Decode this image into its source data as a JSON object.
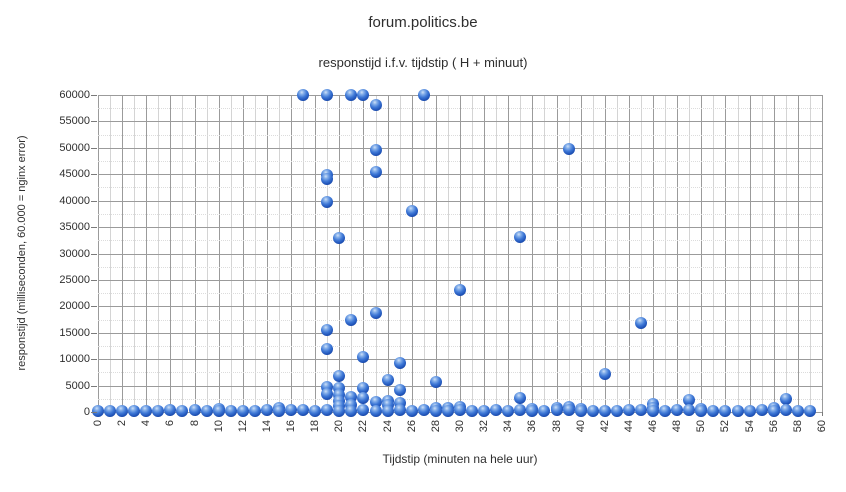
{
  "page": {
    "title": "forum.politics.be",
    "subtitle": "responstijd i.f.v. tijdstip ( H + minuut)"
  },
  "chart_data": {
    "type": "scatter",
    "title": "forum.politics.be",
    "subtitle": "responstijd i.f.v. tijdstip ( H + minuut)",
    "xlabel": "Tijdstip (minuten na hele uur)",
    "ylabel": "responstijd (milliseconden, 60.000 = nginx error)",
    "xlim": [
      0,
      60
    ],
    "ylim": [
      0,
      60000
    ],
    "grid": true,
    "legend": "none",
    "x_ticks": [
      0,
      2,
      4,
      6,
      8,
      10,
      12,
      14,
      16,
      18,
      20,
      22,
      24,
      26,
      28,
      30,
      32,
      34,
      36,
      38,
      40,
      42,
      44,
      46,
      48,
      50,
      52,
      54,
      56,
      58,
      60
    ],
    "y_ticks": [
      0,
      5000,
      10000,
      15000,
      20000,
      25000,
      30000,
      35000,
      40000,
      45000,
      50000,
      55000,
      60000
    ],
    "x_minor_step": 1,
    "y_minor_step": 2500,
    "marker_color": "#2a5fc4",
    "points": [
      [
        0,
        250
      ],
      [
        1,
        200
      ],
      [
        2,
        200
      ],
      [
        3,
        250
      ],
      [
        4,
        200
      ],
      [
        5,
        250
      ],
      [
        6,
        300
      ],
      [
        7,
        250
      ],
      [
        8,
        300
      ],
      [
        9,
        200
      ],
      [
        10,
        650
      ],
      [
        10,
        200
      ],
      [
        11,
        200
      ],
      [
        12,
        250
      ],
      [
        13,
        200
      ],
      [
        14,
        300
      ],
      [
        15,
        700
      ],
      [
        15,
        250
      ],
      [
        16,
        300
      ],
      [
        17,
        60000
      ],
      [
        17,
        300
      ],
      [
        18,
        250
      ],
      [
        19,
        60000
      ],
      [
        19,
        44800
      ],
      [
        19,
        44100
      ],
      [
        19,
        39700
      ],
      [
        19,
        15600
      ],
      [
        19,
        11900
      ],
      [
        19,
        4700
      ],
      [
        19,
        3500
      ],
      [
        19,
        300
      ],
      [
        20,
        33000
      ],
      [
        20,
        6800
      ],
      [
        20,
        4600
      ],
      [
        20,
        3300
      ],
      [
        20,
        2100
      ],
      [
        20,
        1100
      ],
      [
        20,
        250
      ],
      [
        21,
        60000
      ],
      [
        21,
        17400
      ],
      [
        21,
        2900
      ],
      [
        21,
        1400
      ],
      [
        21,
        200
      ],
      [
        22,
        60000
      ],
      [
        22,
        10500
      ],
      [
        22,
        4500
      ],
      [
        22,
        2600
      ],
      [
        22,
        300
      ],
      [
        23,
        58200
      ],
      [
        23,
        49500
      ],
      [
        23,
        45400
      ],
      [
        23,
        18700
      ],
      [
        23,
        1900
      ],
      [
        23,
        200
      ],
      [
        24,
        6000
      ],
      [
        24,
        2000
      ],
      [
        24,
        1300
      ],
      [
        24,
        250
      ],
      [
        25,
        9300
      ],
      [
        25,
        4200
      ],
      [
        25,
        1700
      ],
      [
        25,
        300
      ],
      [
        26,
        38000
      ],
      [
        26,
        250
      ],
      [
        27,
        60000
      ],
      [
        27,
        400
      ],
      [
        28,
        5700
      ],
      [
        28,
        800
      ],
      [
        28,
        200
      ],
      [
        29,
        800
      ],
      [
        29,
        250
      ],
      [
        30,
        23000
      ],
      [
        30,
        900
      ],
      [
        30,
        300
      ],
      [
        31,
        250
      ],
      [
        32,
        200
      ],
      [
        33,
        350
      ],
      [
        34,
        250
      ],
      [
        35,
        33200
      ],
      [
        35,
        2600
      ],
      [
        35,
        300
      ],
      [
        36,
        600
      ],
      [
        36,
        200
      ],
      [
        37,
        250
      ],
      [
        38,
        800
      ],
      [
        38,
        300
      ],
      [
        39,
        49700
      ],
      [
        39,
        900
      ],
      [
        39,
        350
      ],
      [
        40,
        500
      ],
      [
        40,
        200
      ],
      [
        41,
        250
      ],
      [
        42,
        7200
      ],
      [
        42,
        200
      ],
      [
        43,
        250
      ],
      [
        44,
        300
      ],
      [
        45,
        16800
      ],
      [
        45,
        350
      ],
      [
        46,
        1600
      ],
      [
        46,
        700
      ],
      [
        46,
        250
      ],
      [
        47,
        200
      ],
      [
        48,
        300
      ],
      [
        49,
        2300
      ],
      [
        49,
        300
      ],
      [
        50,
        600
      ],
      [
        50,
        250
      ],
      [
        51,
        200
      ],
      [
        52,
        250
      ],
      [
        53,
        200
      ],
      [
        54,
        250
      ],
      [
        55,
        300
      ],
      [
        56,
        700
      ],
      [
        56,
        250
      ],
      [
        57,
        2500
      ],
      [
        57,
        400
      ],
      [
        58,
        250
      ],
      [
        59,
        200
      ]
    ]
  }
}
